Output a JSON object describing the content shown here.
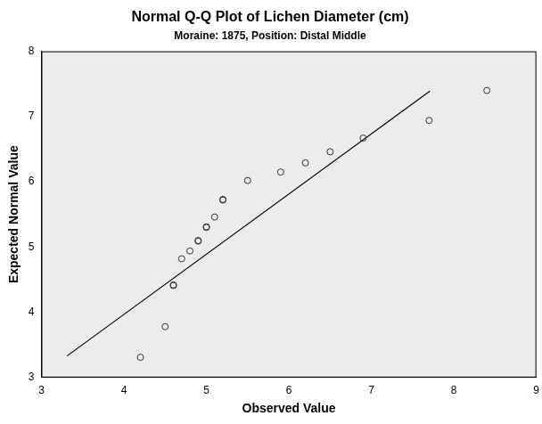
{
  "chart_data": {
    "type": "scatter",
    "title": "Normal Q-Q Plot of Lichen Diameter (cm)",
    "subtitle": "Moraine: 1875, Position: Distal Middle",
    "x_label": "Observed Value",
    "y_label": "Expected Normal Value",
    "xlim": [
      3,
      9
    ],
    "xticks": [
      3,
      4,
      5,
      6,
      7,
      8,
      9
    ],
    "ylim": [
      3,
      8
    ],
    "yticks": [
      3,
      4,
      5,
      6,
      7,
      8
    ],
    "grid": false,
    "series": [
      {
        "type": "scatter",
        "marker": "circle",
        "color": "#333333",
        "x": [
          4.2,
          4.5,
          4.6,
          4.6,
          4.7,
          4.8,
          4.9,
          4.9,
          5.0,
          5.0,
          5.1,
          5.2,
          5.2,
          5.5,
          5.9,
          6.2,
          6.5,
          6.9,
          7.7,
          8.4
        ],
        "values": [
          3.31,
          3.78,
          4.41,
          4.42,
          4.82,
          4.94,
          5.09,
          5.1,
          5.3,
          5.31,
          5.46,
          5.72,
          5.73,
          6.02,
          6.15,
          6.29,
          6.46,
          6.67,
          6.94,
          7.4
        ]
      },
      {
        "type": "line",
        "line_style": "solid",
        "color": "#000000",
        "x": [
          3.31,
          7.71
        ],
        "values": [
          3.33,
          7.39
        ]
      }
    ]
  }
}
